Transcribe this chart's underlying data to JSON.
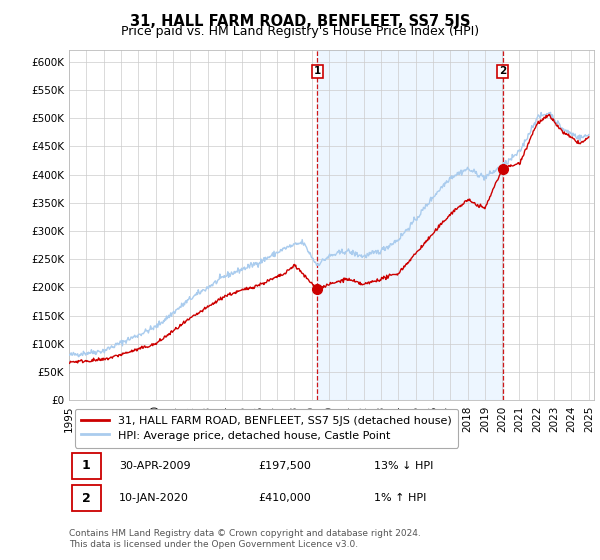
{
  "title": "31, HALL FARM ROAD, BENFLEET, SS7 5JS",
  "subtitle": "Price paid vs. HM Land Registry's House Price Index (HPI)",
  "ylim": [
    0,
    620000
  ],
  "yticks": [
    0,
    50000,
    100000,
    150000,
    200000,
    250000,
    300000,
    350000,
    400000,
    450000,
    500000,
    550000,
    600000
  ],
  "ytick_labels": [
    "£0",
    "£50K",
    "£100K",
    "£150K",
    "£200K",
    "£250K",
    "£300K",
    "£350K",
    "£400K",
    "£450K",
    "£500K",
    "£550K",
    "£600K"
  ],
  "xlim_start": 1995,
  "xlim_end": 2025.3,
  "hpi_color": "#aaccee",
  "price_color": "#cc0000",
  "vline_color": "#cc0000",
  "shade_color": "#ddeeff",
  "grid_color": "#cccccc",
  "background_color": "#ffffff",
  "sale1_x": 2009.33,
  "sale1_y": 197500,
  "sale2_x": 2020.04,
  "sale2_y": 410000,
  "legend_line1": "31, HALL FARM ROAD, BENFLEET, SS7 5JS (detached house)",
  "legend_line2": "HPI: Average price, detached house, Castle Point",
  "annotation1_num": "1",
  "annotation1_date": "30-APR-2009",
  "annotation1_price": "£197,500",
  "annotation1_hpi": "13% ↓ HPI",
  "annotation2_num": "2",
  "annotation2_date": "10-JAN-2020",
  "annotation2_price": "£410,000",
  "annotation2_hpi": "1% ↑ HPI",
  "footer": "Contains HM Land Registry data © Crown copyright and database right 2024.\nThis data is licensed under the Open Government Licence v3.0.",
  "title_fontsize": 10.5,
  "subtitle_fontsize": 9,
  "tick_fontsize": 7.5,
  "legend_fontsize": 8,
  "annotation_fontsize": 8,
  "footer_fontsize": 6.5
}
